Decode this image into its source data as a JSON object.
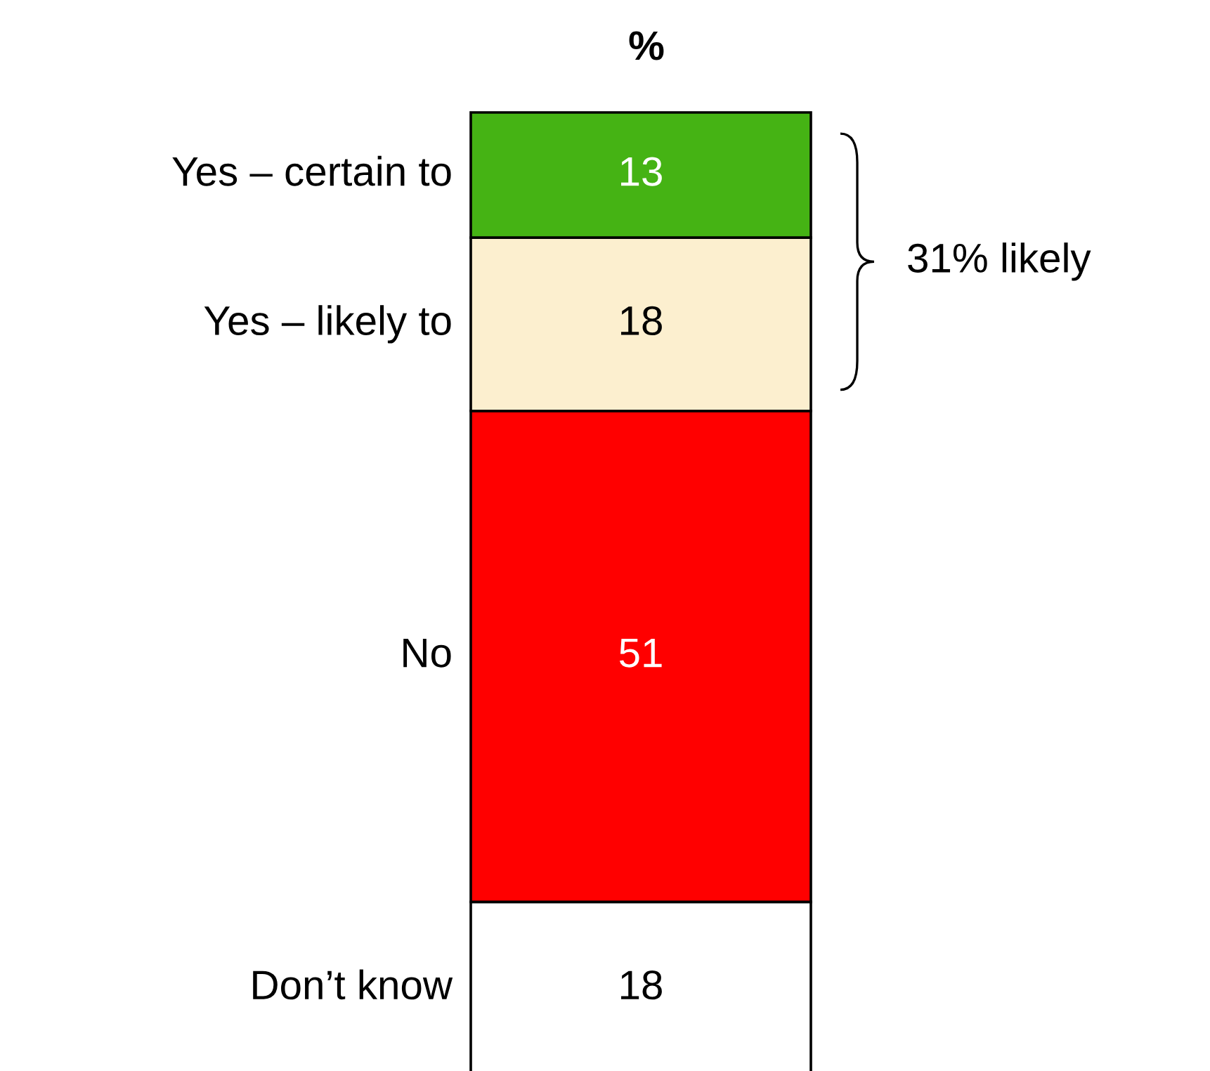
{
  "chart_data": {
    "type": "bar",
    "title": "%",
    "stacked": true,
    "categories": [
      null
    ],
    "data_labels": true,
    "series": [
      {
        "name": "Don’t know",
        "color": "#ffffff",
        "values": [
          18
        ]
      },
      {
        "name": "No",
        "color": "#ff0000",
        "values": [
          51
        ]
      },
      {
        "name": "Yes – likely to",
        "color": "#fcefcf",
        "values": [
          18
        ]
      },
      {
        "name": "Yes – certain to",
        "color": "#45b314",
        "values": [
          13
        ]
      }
    ],
    "annotations": [
      "31% likely"
    ]
  }
}
